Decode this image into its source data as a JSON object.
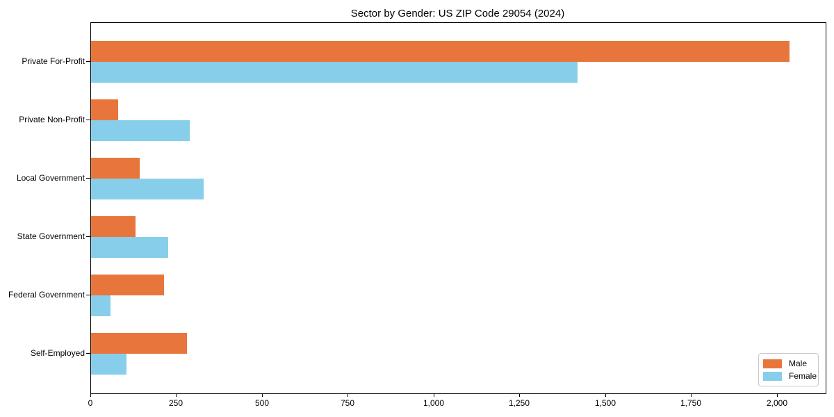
{
  "chart_data": {
    "type": "bar",
    "orientation": "horizontal",
    "title": "Sector by Gender: US ZIP Code 29054 (2024)",
    "categories": [
      "Private For-Profit",
      "Private Non-Profit",
      "Local Government",
      "State Government",
      "Federal Government",
      "Self-Employed"
    ],
    "series": [
      {
        "name": "Male",
        "color": "#e8763c",
        "values": [
          2035,
          78,
          141,
          130,
          212,
          279
        ]
      },
      {
        "name": "Female",
        "color": "#87ceeb",
        "values": [
          1418,
          287,
          328,
          224,
          56,
          103
        ]
      }
    ],
    "xlabel": "",
    "ylabel": "",
    "xlim": [
      0,
      2140
    ],
    "x_ticks": [
      0,
      250,
      500,
      750,
      1000,
      1250,
      1500,
      1750,
      2000
    ],
    "x_tick_labels": [
      "0",
      "250",
      "500",
      "750",
      "1,000",
      "1,250",
      "1,500",
      "1,750",
      "2,000"
    ],
    "grid": false,
    "legend": {
      "position": "lower right"
    },
    "frame_color": "#000000",
    "background_color": "#ffffff"
  }
}
